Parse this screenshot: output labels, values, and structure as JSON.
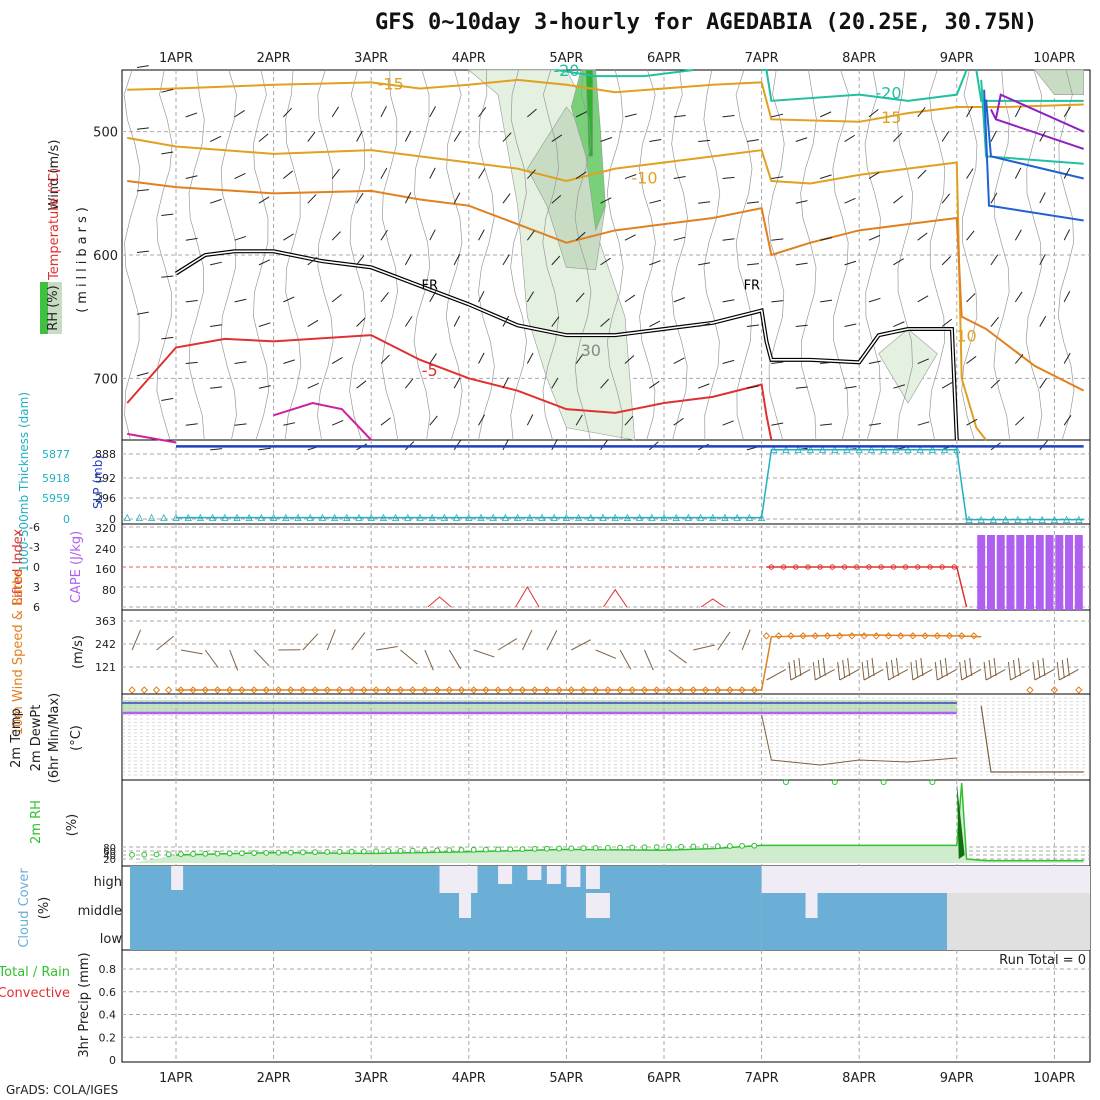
{
  "title": "GFS 0~10day 3-hourly for AGEDABIA (20.25E, 30.75N)",
  "footer": "GrADS: COLA/IGES",
  "colors": {
    "temp_orange": "#e08020",
    "temp_gold": "#e0a020",
    "temp_red": "#e03030",
    "temp_magenta": "#d020a0",
    "cold_teal": "#20c0a0",
    "cold_blue": "#2060d0",
    "cold_purple": "#9020c0",
    "freezing": "#000000",
    "rh_green": "#40c040",
    "cyan": "#20b0c0",
    "slp_blue": "#2040c0",
    "cape_purple": "#b060f0",
    "li_red": "#e03030",
    "wind_orange": "#e08020",
    "barb_brown": "#806040",
    "cloud_blue": "#6baed6",
    "cloud_light": "#f0ecf5",
    "cloud_grey": "#e0e0e0",
    "rh2m_green": "#30c030"
  },
  "chart_data": [
    {
      "panel": "upper-air cross-section",
      "type": "area",
      "x_ticks": [
        "1APR",
        "2APR",
        "3APR",
        "4APR",
        "5APR",
        "6APR",
        "7APR",
        "8APR",
        "9APR",
        "10APR"
      ],
      "ylabel_left": "Wind (m/s)",
      "ylabel_temp": "Temperature (°C)",
      "ylabel_rh": "RH (%)",
      "ylabel_units": "(millibars)",
      "y_ticks": [
        500,
        600,
        700
      ],
      "ylim": [
        750,
        450
      ],
      "contour_labels": [
        "-15",
        "-20",
        "-20",
        "-15",
        "-10",
        "-10",
        "FR",
        "FR",
        "-5",
        "30",
        "10"
      ],
      "freezing_level_mb": [
        {
          "x": 0,
          "y": 615
        },
        {
          "x": 0.3,
          "y": 600
        },
        {
          "x": 0.6,
          "y": 597
        },
        {
          "x": 1.0,
          "y": 597
        },
        {
          "x": 1.5,
          "y": 605
        },
        {
          "x": 2.0,
          "y": 610
        },
        {
          "x": 2.5,
          "y": 625
        },
        {
          "x": 3.0,
          "y": 640
        },
        {
          "x": 3.5,
          "y": 657
        },
        {
          "x": 4.0,
          "y": 665
        },
        {
          "x": 4.5,
          "y": 665
        },
        {
          "x": 5.0,
          "y": 660
        },
        {
          "x": 5.5,
          "y": 655
        },
        {
          "x": 6.0,
          "y": 645
        },
        {
          "x": 6.05,
          "y": 670
        },
        {
          "x": 6.1,
          "y": 685
        },
        {
          "x": 6.5,
          "y": 685
        },
        {
          "x": 7.0,
          "y": 687
        },
        {
          "x": 7.2,
          "y": 665
        },
        {
          "x": 7.5,
          "y": 660
        },
        {
          "x": 7.95,
          "y": 660
        },
        {
          "x": 8.0,
          "y": 750
        }
      ]
    },
    {
      "panel": "thickness and SLP",
      "type": "line",
      "ylabel_left": "1000-500mb Thickness (dam)",
      "ylabel_right": "SLP (mb)",
      "y_ticks_left": [
        "5877",
        "5918",
        "5959",
        "0"
      ],
      "y_ticks_right": [
        "888",
        "592",
        "296",
        "0"
      ],
      "series": [
        {
          "name": "thickness",
          "x": [
            0,
            6.0,
            6.1,
            8.0,
            8.1,
            9.3
          ],
          "values": [
            30,
            30,
            888,
            888,
            5,
            5
          ]
        },
        {
          "name": "SLP",
          "x": [
            0,
            9.3
          ],
          "values": [
            930,
            930
          ]
        }
      ]
    },
    {
      "panel": "stability",
      "type": "bar",
      "ylabel_left": "Lifted Index",
      "ylabel_right": "CAPE (J/kg)",
      "li_ticks": [
        "-6",
        "-3",
        "0",
        "3",
        "6"
      ],
      "cape_ticks": [
        "320",
        "240",
        "160",
        "80"
      ],
      "cape_bars_x": [
        8.25,
        8.35,
        8.45,
        8.55,
        8.65,
        8.75,
        8.85,
        8.95,
        9.05,
        9.15,
        9.25
      ],
      "cape_bars_values": [
        300,
        300,
        300,
        300,
        300,
        300,
        300,
        300,
        300,
        300,
        300
      ],
      "li_line": {
        "x": [
          6.05,
          6.1,
          8.0,
          8.1
        ],
        "values": [
          0,
          0,
          0,
          6
        ]
      }
    },
    {
      "panel": "10m wind",
      "type": "line",
      "ylabel": "10m Wind Speed & Barbs",
      "units": "(m/s)",
      "y_ticks": [
        "363",
        "242",
        "121"
      ],
      "series": [
        {
          "name": "speed",
          "x": [
            0,
            6.0,
            6.1,
            7.0,
            8.0,
            8.25
          ],
          "values": [
            0,
            0,
            280,
            290,
            285,
            280
          ]
        }
      ]
    },
    {
      "panel": "2m temperature",
      "type": "line",
      "ylabel": "2m Temp 2m DewPt (6hr Min/Max)",
      "units": "(°C)"
    },
    {
      "panel": "2m RH",
      "type": "area",
      "ylabel": "2m RH",
      "units": "(%)",
      "y_ticks": [
        "80",
        "60",
        "40",
        "20"
      ],
      "series": [
        {
          "name": "rh",
          "x": [
            0,
            1,
            2,
            3,
            4,
            5,
            5.5,
            6.0,
            8.0,
            8.05,
            8.1,
            8.3,
            9.3
          ],
          "values": [
            10,
            13,
            12,
            14,
            17,
            16,
            18,
            22,
            22,
            100,
            5,
            3,
            3
          ]
        }
      ]
    },
    {
      "panel": "cloud cover",
      "type": "area",
      "ylabel": "Cloud Cover",
      "units": "(%)",
      "levels": [
        "high",
        "middle",
        "low"
      ]
    },
    {
      "panel": "precipitation",
      "type": "line",
      "ylabel": "3hr Precip (mm)",
      "ylabel_total": "Total / Rain",
      "ylabel_convective": "Convective",
      "y_ticks": [
        "0.8",
        "0.6",
        "0.4",
        "0.2",
        "0"
      ],
      "run_total": "Run Total = 0"
    }
  ]
}
